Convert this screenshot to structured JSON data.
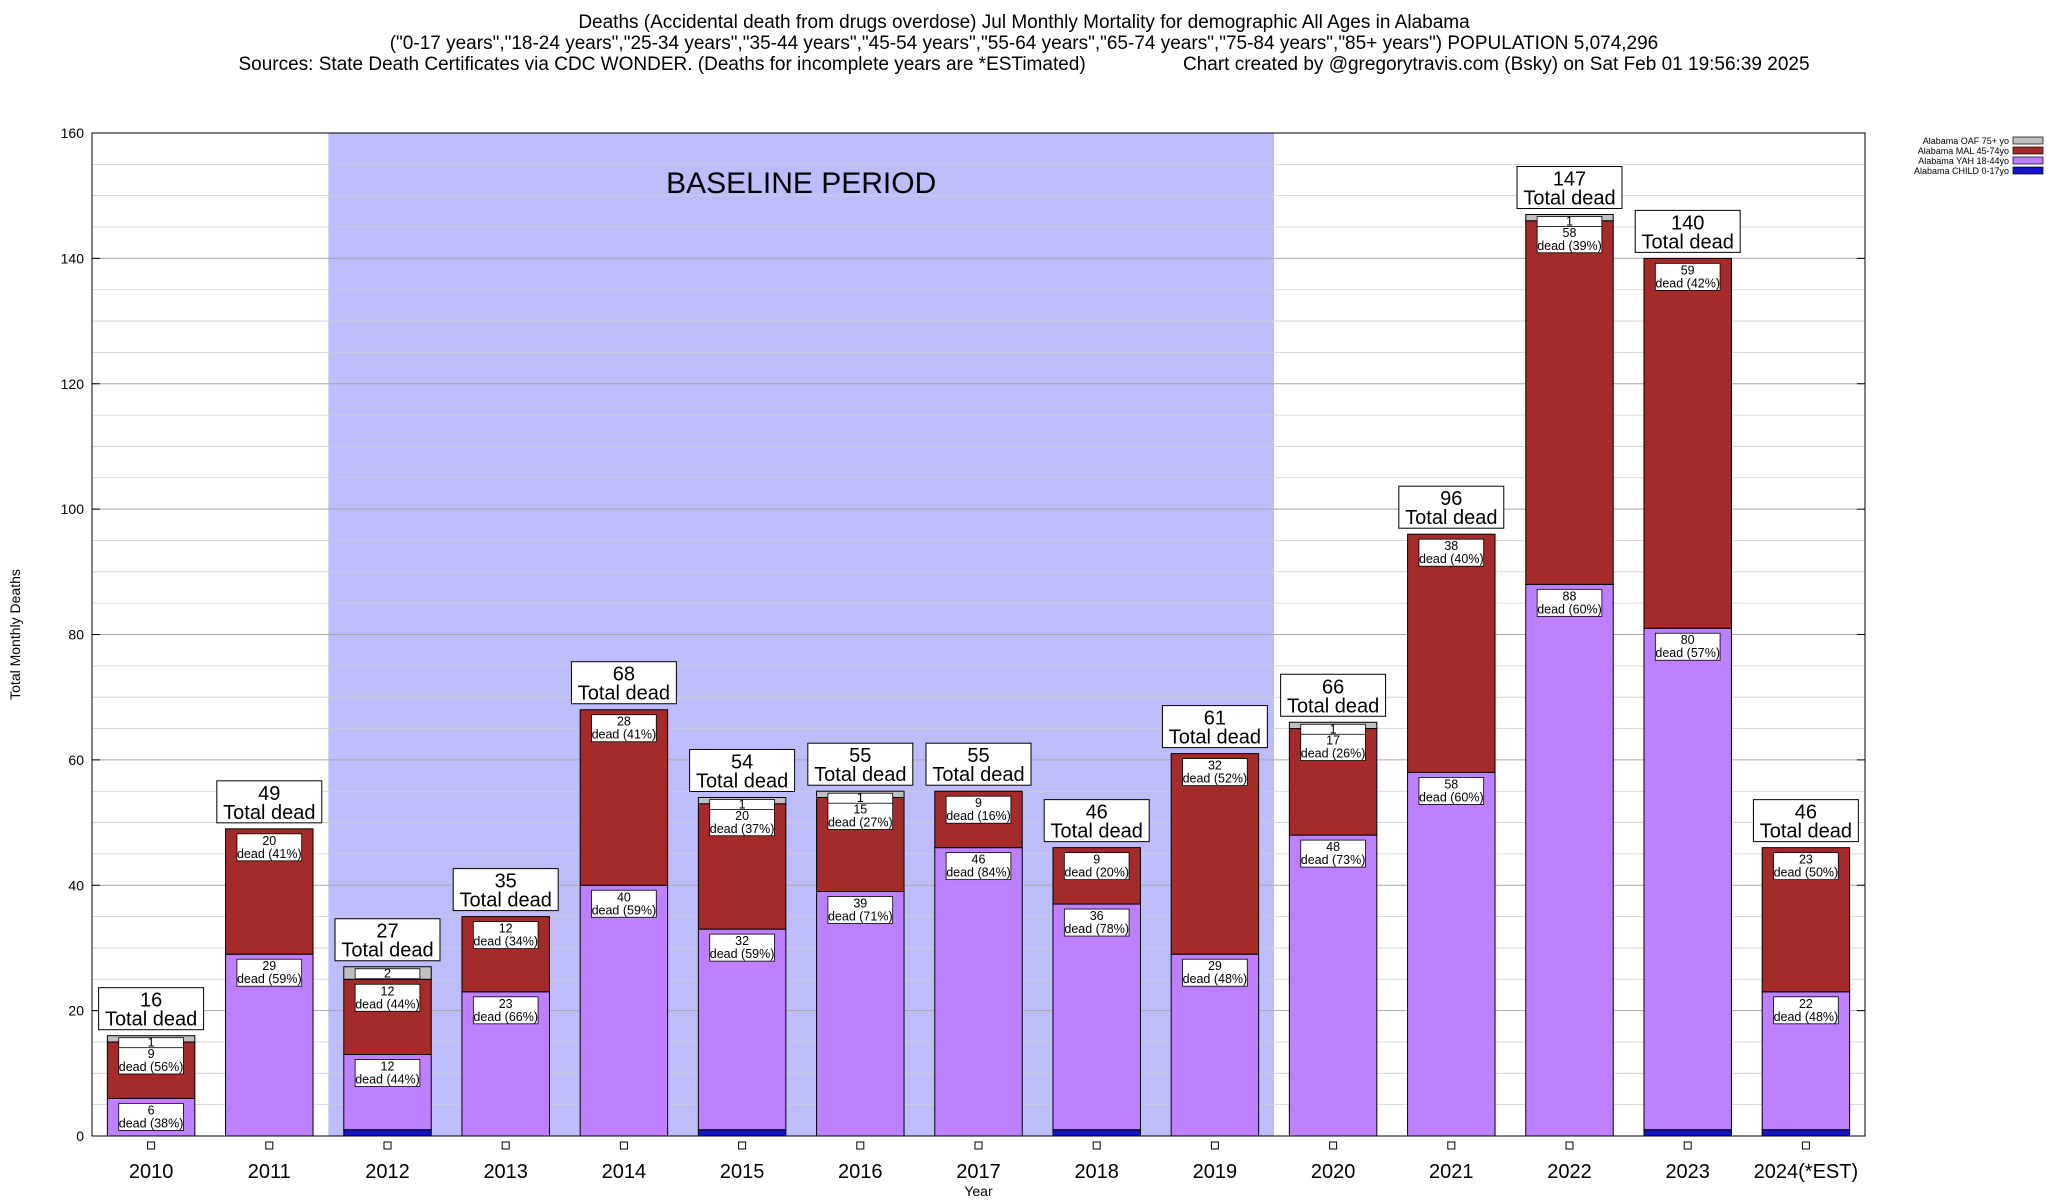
{
  "titles": {
    "line1": "Deaths (Accidental death from drugs overdose) Jul Monthly Mortality for demographic All Ages in Alabama",
    "line2": "(\"0-17 years\",\"18-24 years\",\"25-34 years\",\"35-44 years\",\"45-54 years\",\"55-64 years\",\"65-74 years\",\"75-84 years\",\"85+ years\") POPULATION 5,074,296",
    "sources": "Sources: State Death Certificates via CDC WONDER. (Deaths for incomplete years are *ESTimated)",
    "credit": "Chart created by @gregorytravis.com (Bsky) on Sat Feb 01 19:56:39 2025"
  },
  "chart_data": {
    "type": "bar",
    "stacked": true,
    "ylabel": "Total Monthly Deaths",
    "xlabel": "Year",
    "ylim": [
      0,
      160
    ],
    "y_ticks": [
      0,
      20,
      40,
      60,
      80,
      100,
      120,
      140,
      160
    ],
    "grid": true,
    "legend_position": "top-right",
    "categories": [
      "2010",
      "2011",
      "2012",
      "2013",
      "2014",
      "2015",
      "2016",
      "2017",
      "2018",
      "2019",
      "2020",
      "2021",
      "2022",
      "2023",
      "2024(*EST)"
    ],
    "series": [
      {
        "name": "Alabama CHILD 0-17yo",
        "color": "#1414c8",
        "values": [
          0,
          0,
          1,
          0,
          0,
          1,
          0,
          0,
          1,
          0,
          0,
          0,
          0,
          1,
          1
        ]
      },
      {
        "name": "Alabama YAH 18-44yo",
        "color": "#bf80ff",
        "values": [
          6,
          29,
          12,
          23,
          40,
          32,
          39,
          46,
          36,
          29,
          48,
          58,
          88,
          80,
          22
        ]
      },
      {
        "name": "Alabama MAL 45-74yo",
        "color": "#a52a2a",
        "values": [
          9,
          20,
          12,
          12,
          28,
          20,
          15,
          9,
          9,
          32,
          17,
          38,
          58,
          59,
          23
        ]
      },
      {
        "name": "Alabama OAF 75+ yo",
        "color": "#c0c0c0",
        "values": [
          1,
          0,
          2,
          0,
          0,
          1,
          1,
          0,
          0,
          0,
          1,
          0,
          1,
          0,
          0
        ]
      }
    ],
    "segment_labels": {
      "Alabama YAH 18-44yo": [
        "6",
        "29",
        "12",
        "23",
        "40",
        "32",
        "39",
        "46",
        "36",
        "29",
        "48",
        "58",
        "88",
        "80",
        "22"
      ],
      "Alabama YAH 18-44yo_pct": [
        "dead (38%)",
        "dead (59%)",
        "dead (44%)",
        "dead (66%)",
        "dead (59%)",
        "dead (59%)",
        "dead (71%)",
        "dead (84%)",
        "dead (78%)",
        "dead (48%)",
        "dead (73%)",
        "dead (60%)",
        "dead (60%)",
        "dead (57%)",
        "dead (48%)"
      ],
      "Alabama MAL 45-74yo": [
        "9",
        "20",
        "12",
        "12",
        "28",
        "20",
        "15",
        "9",
        "9",
        "32",
        "17",
        "38",
        "58",
        "59",
        "23"
      ],
      "Alabama MAL 45-74yo_pct": [
        "dead (56%)",
        "dead (41%)",
        "dead (44%)",
        "dead (34%)",
        "dead (41%)",
        "dead (37%)",
        "dead (27%)",
        "dead (16%)",
        "dead (20%)",
        "dead (52%)",
        "dead (26%)",
        "dead (40%)",
        "dead (39%)",
        "dead (42%)",
        "dead (50%)"
      ],
      "Alabama OAF 75+ yo": [
        "1",
        "",
        "2",
        "",
        "",
        "1",
        "1",
        "",
        "",
        "",
        "1",
        "",
        "1",
        "",
        ""
      ]
    },
    "totals": [
      16,
      49,
      27,
      35,
      68,
      54,
      55,
      55,
      46,
      61,
      66,
      96,
      147,
      140,
      46
    ],
    "total_suffix": "Total dead",
    "baseline": {
      "label": "BASELINE PERIOD",
      "start": "2012",
      "end": "2019",
      "color": "#bdbdfb"
    }
  }
}
